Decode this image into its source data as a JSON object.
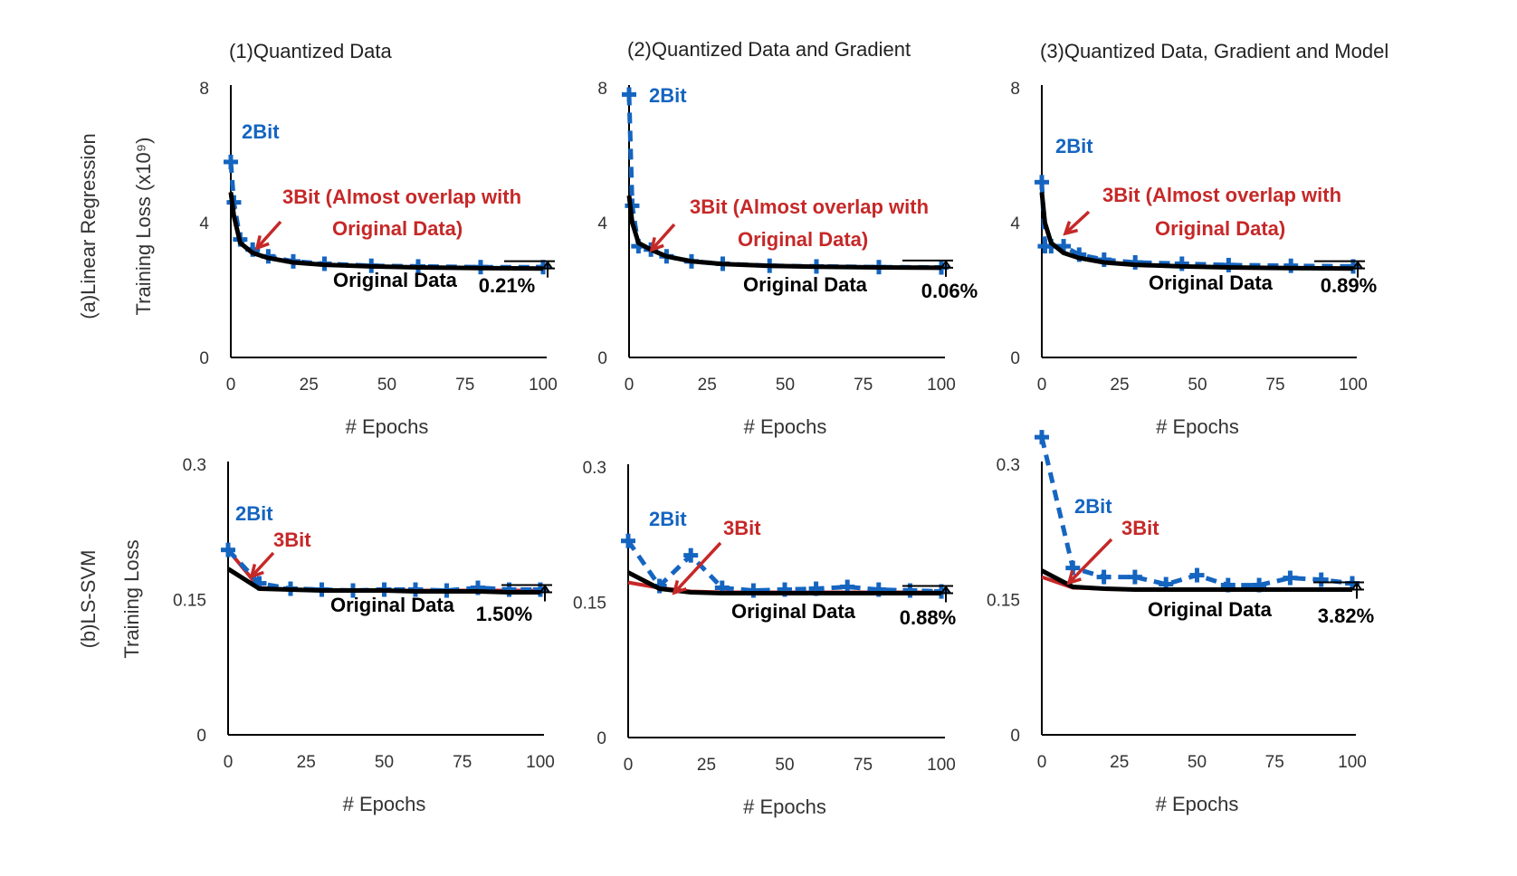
{
  "colors": {
    "q2": "#1565c0",
    "q3": "#c62828",
    "orig": "#000000",
    "axis": "#000000"
  },
  "row_labels": [
    {
      "row": "(a)Linear Regression",
      "ylabel": "Training Loss (x10⁹)"
    },
    {
      "row": "(b)LS-SVM",
      "ylabel": "Training Loss"
    }
  ],
  "chart_data": [
    {
      "type": "line",
      "title": "(1)Quantized Data",
      "xlabel": "# Epochs",
      "xlim": [
        0,
        100
      ],
      "ylim": [
        0,
        8
      ],
      "xticks": [
        "0",
        "25",
        "50",
        "75",
        "100"
      ],
      "yticks": [
        "0",
        "4",
        "8"
      ],
      "labels": {
        "q2": "2Bit",
        "q3": "3Bit (Almost overlap with Original Data)",
        "orig": "Original Data"
      },
      "gap_label": "0.21%",
      "series": [
        {
          "key": "q2",
          "x": [
            0,
            1,
            3,
            7,
            12,
            20,
            30,
            45,
            60,
            80,
            100
          ],
          "y": [
            5.8,
            4.6,
            3.5,
            3.2,
            3.0,
            2.85,
            2.78,
            2.72,
            2.7,
            2.68,
            2.68
          ]
        },
        {
          "key": "q3",
          "x": [
            0,
            1,
            3,
            7,
            12,
            20,
            30,
            45,
            60,
            80,
            100
          ],
          "y": [
            4.9,
            4.2,
            3.4,
            3.1,
            2.95,
            2.82,
            2.75,
            2.7,
            2.67,
            2.65,
            2.64
          ]
        },
        {
          "key": "orig",
          "x": [
            0,
            1,
            3,
            7,
            12,
            20,
            30,
            45,
            60,
            80,
            100
          ],
          "y": [
            4.9,
            4.2,
            3.4,
            3.1,
            2.95,
            2.82,
            2.75,
            2.7,
            2.67,
            2.65,
            2.64
          ]
        }
      ]
    },
    {
      "type": "line",
      "title": "(2)Quantized Data and Gradient",
      "xlabel": "# Epochs",
      "xlim": [
        0,
        100
      ],
      "ylim": [
        0,
        8
      ],
      "xticks": [
        "0",
        "25",
        "50",
        "75",
        "100"
      ],
      "yticks": [
        "0",
        "4",
        "8"
      ],
      "labels": {
        "q2": "2Bit",
        "q3": "3Bit (Almost overlap with Original Data)",
        "orig": "Original Data"
      },
      "gap_label": "0.06%",
      "series": [
        {
          "key": "q2",
          "x": [
            0,
            1,
            3,
            7,
            12,
            20,
            30,
            45,
            60,
            80,
            100
          ],
          "y": [
            7.8,
            4.5,
            3.3,
            3.2,
            3.0,
            2.85,
            2.78,
            2.72,
            2.7,
            2.68,
            2.67
          ]
        },
        {
          "key": "q3",
          "x": [
            0,
            1,
            3,
            7,
            12,
            20,
            30,
            45,
            60,
            80,
            100
          ],
          "y": [
            4.8,
            4.0,
            3.4,
            3.2,
            3.0,
            2.85,
            2.77,
            2.72,
            2.69,
            2.67,
            2.66
          ]
        },
        {
          "key": "orig",
          "x": [
            0,
            1,
            3,
            7,
            12,
            20,
            30,
            45,
            60,
            80,
            100
          ],
          "y": [
            4.8,
            4.0,
            3.4,
            3.2,
            3.0,
            2.85,
            2.77,
            2.72,
            2.69,
            2.67,
            2.66
          ]
        }
      ]
    },
    {
      "type": "line",
      "title": "(3)Quantized Data, Gradient and Model",
      "xlabel": "# Epochs",
      "xlim": [
        0,
        100
      ],
      "ylim": [
        0,
        8
      ],
      "xticks": [
        "0",
        "25",
        "50",
        "75",
        "100"
      ],
      "yticks": [
        "0",
        "4",
        "8"
      ],
      "labels": {
        "q2": "2Bit",
        "q3": "3Bit (Almost overlap with Original Data)",
        "orig": "Original Data"
      },
      "gap_label": "0.89%",
      "series": [
        {
          "key": "q2",
          "x": [
            0,
            1,
            3,
            7,
            12,
            20,
            30,
            45,
            60,
            80,
            100
          ],
          "y": [
            5.2,
            3.3,
            3.3,
            3.3,
            3.05,
            2.9,
            2.82,
            2.78,
            2.74,
            2.72,
            2.7
          ]
        },
        {
          "key": "q3",
          "x": [
            0,
            1,
            3,
            7,
            12,
            20,
            30,
            45,
            60,
            80,
            100
          ],
          "y": [
            4.9,
            4.0,
            3.4,
            3.1,
            2.95,
            2.82,
            2.75,
            2.7,
            2.67,
            2.65,
            2.64
          ]
        },
        {
          "key": "orig",
          "x": [
            0,
            1,
            3,
            7,
            12,
            20,
            30,
            45,
            60,
            80,
            100
          ],
          "y": [
            4.9,
            4.0,
            3.4,
            3.1,
            2.95,
            2.82,
            2.75,
            2.7,
            2.67,
            2.65,
            2.64
          ]
        }
      ]
    },
    {
      "type": "line",
      "xlabel": "# Epochs",
      "xlim": [
        0,
        100
      ],
      "ylim": [
        0,
        0.3
      ],
      "xticks": [
        "0",
        "25",
        "50",
        "75",
        "100"
      ],
      "yticks": [
        "0",
        "0.15",
        "0.3"
      ],
      "labels": {
        "q2": "2Bit",
        "q3": "3Bit",
        "orig": "Original Data"
      },
      "gap_label": "1.50%",
      "series": [
        {
          "key": "q2",
          "x": [
            0,
            10,
            20,
            30,
            40,
            50,
            60,
            70,
            80,
            90,
            100
          ],
          "y": [
            0.205,
            0.168,
            0.162,
            0.161,
            0.16,
            0.161,
            0.161,
            0.16,
            0.163,
            0.161,
            0.161
          ]
        },
        {
          "key": "q3",
          "x": [
            0,
            10,
            20,
            30,
            40,
            50,
            60,
            70,
            80,
            90,
            100
          ],
          "y": [
            0.205,
            0.163,
            0.161,
            0.16,
            0.16,
            0.16,
            0.16,
            0.16,
            0.16,
            0.16,
            0.16
          ]
        },
        {
          "key": "orig",
          "x": [
            0,
            10,
            20,
            30,
            40,
            50,
            60,
            70,
            80,
            90,
            100
          ],
          "y": [
            0.184,
            0.162,
            0.161,
            0.16,
            0.16,
            0.16,
            0.159,
            0.159,
            0.159,
            0.158,
            0.158
          ]
        }
      ]
    },
    {
      "type": "line",
      "xlabel": "# Epochs",
      "xlim": [
        0,
        100
      ],
      "ylim": [
        0,
        0.3
      ],
      "xticks": [
        "0",
        "25",
        "50",
        "75",
        "100"
      ],
      "yticks": [
        "0",
        "0.15",
        "0.3"
      ],
      "labels": {
        "q2": "2Bit",
        "q3": "3Bit",
        "orig": "Original Data"
      },
      "gap_label": "0.88%",
      "series": [
        {
          "key": "q2",
          "x": [
            0,
            10,
            20,
            30,
            40,
            50,
            60,
            70,
            80,
            90,
            100
          ],
          "y": [
            0.218,
            0.168,
            0.202,
            0.166,
            0.163,
            0.164,
            0.165,
            0.167,
            0.164,
            0.163,
            0.162
          ]
        },
        {
          "key": "q3",
          "x": [
            0,
            10,
            20,
            30,
            40,
            50,
            60,
            70,
            80,
            90,
            100
          ],
          "y": [
            0.172,
            0.166,
            0.162,
            0.161,
            0.161,
            0.161,
            0.161,
            0.161,
            0.161,
            0.161,
            0.161
          ]
        },
        {
          "key": "orig",
          "x": [
            0,
            10,
            20,
            30,
            40,
            50,
            60,
            70,
            80,
            90,
            100
          ],
          "y": [
            0.183,
            0.165,
            0.161,
            0.16,
            0.16,
            0.16,
            0.16,
            0.16,
            0.16,
            0.16,
            0.16
          ]
        }
      ]
    },
    {
      "type": "line",
      "xlabel": "# Epochs",
      "xlim": [
        0,
        100
      ],
      "ylim": [
        0,
        0.3
      ],
      "xticks": [
        "0",
        "25",
        "50",
        "75",
        "100"
      ],
      "yticks": [
        "0",
        "0.15",
        "0.3"
      ],
      "labels": {
        "q2": "2Bit",
        "q3": "3Bit",
        "orig": "Original Data"
      },
      "gap_label": "3.82%",
      "series": [
        {
          "key": "q2",
          "x": [
            0,
            10,
            20,
            30,
            40,
            50,
            60,
            70,
            80,
            90,
            100
          ],
          "y": [
            0.33,
            0.185,
            0.175,
            0.175,
            0.167,
            0.177,
            0.166,
            0.166,
            0.174,
            0.172,
            0.168
          ]
        },
        {
          "key": "q3",
          "x": [
            0,
            10,
            20,
            30,
            40,
            50,
            60,
            70,
            80,
            90,
            100
          ],
          "y": [
            0.175,
            0.163,
            0.162,
            0.161,
            0.161,
            0.161,
            0.161,
            0.161,
            0.161,
            0.161,
            0.161
          ]
        },
        {
          "key": "orig",
          "x": [
            0,
            10,
            20,
            30,
            40,
            50,
            60,
            70,
            80,
            90,
            100
          ],
          "y": [
            0.182,
            0.164,
            0.162,
            0.161,
            0.161,
            0.161,
            0.161,
            0.161,
            0.161,
            0.161,
            0.161
          ]
        }
      ]
    }
  ]
}
